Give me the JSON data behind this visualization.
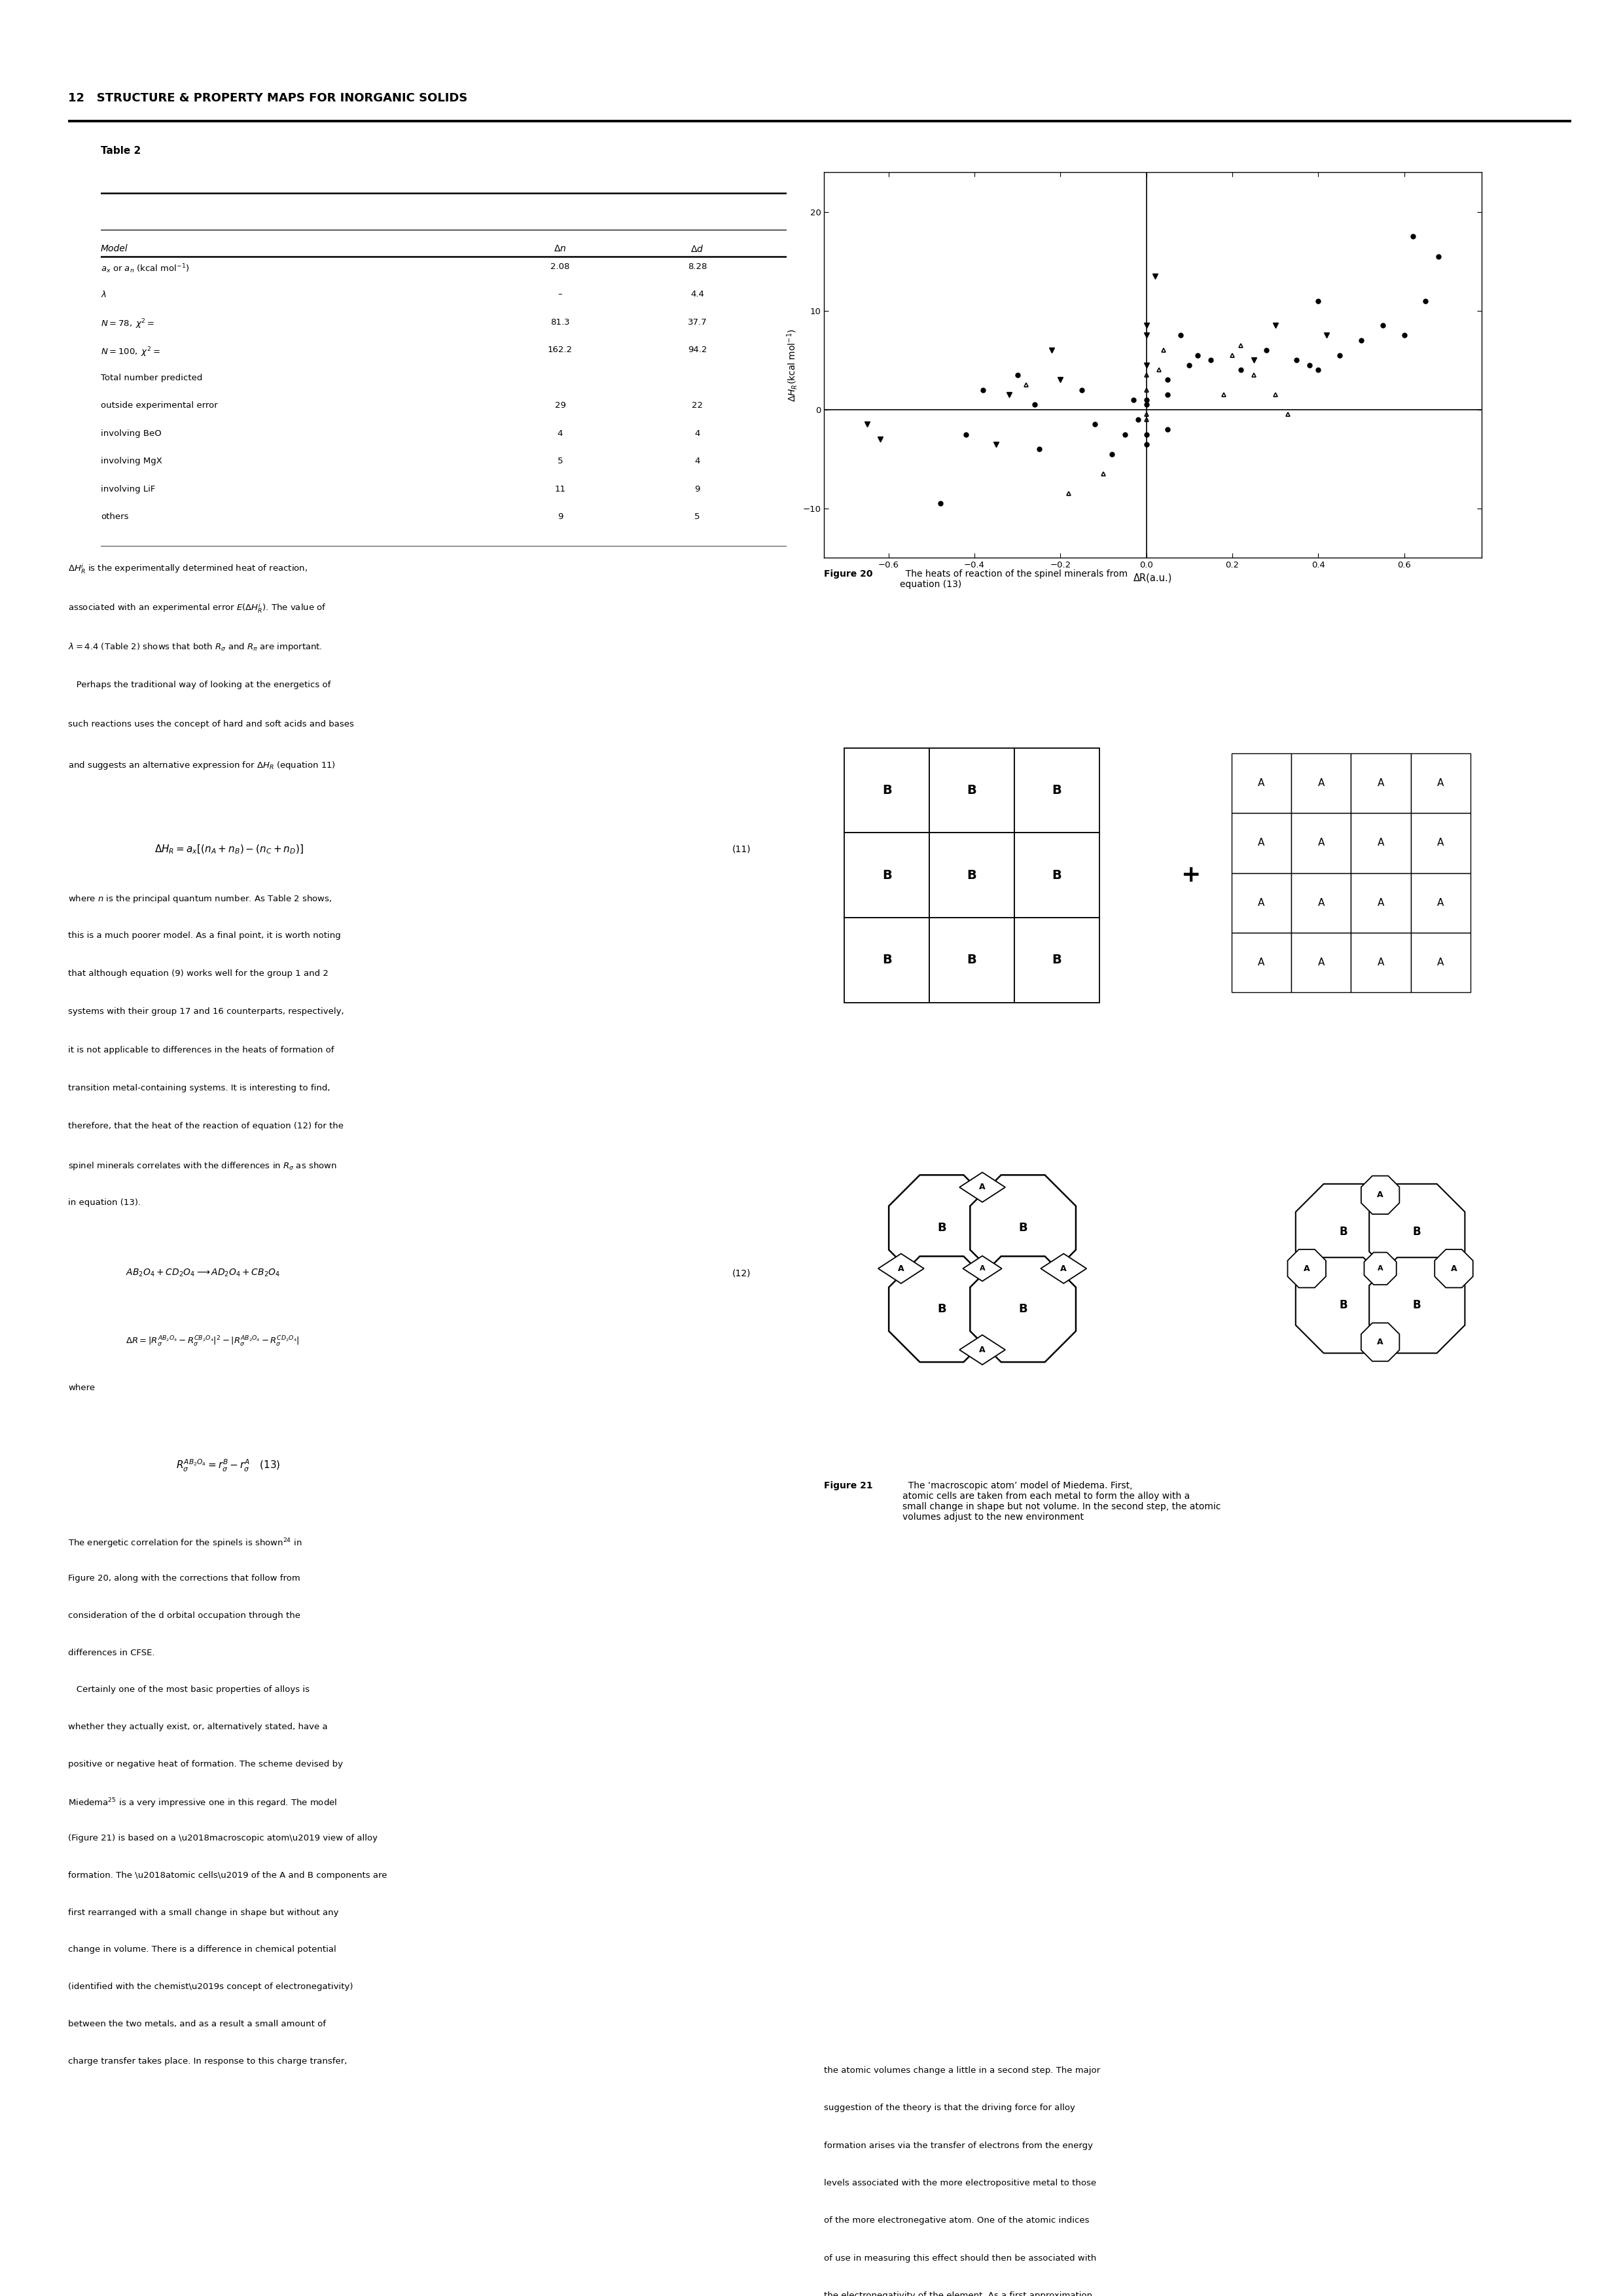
{
  "page_title": "12   STRUCTURE & PROPERTY MAPS FOR INORGANIC SOLIDS",
  "table_title": "Table 2",
  "scatter_xlabel": "ΔR(a.u.)",
  "scatter_xlim": [
    -0.75,
    0.78
  ],
  "scatter_ylim": [
    -15,
    24
  ],
  "scatter_xticks": [
    -0.6,
    -0.4,
    -0.2,
    0,
    0.2,
    0.4,
    0.6
  ],
  "scatter_yticks": [
    -10,
    0,
    10,
    20
  ],
  "fig20_caption_bold": "Figure 20",
  "fig20_caption_rest": "  The heats of reaction of the spinel minerals from\nequation (13)",
  "fig21_caption_bold": "Figure 21",
  "fig21_caption_rest": "  The ‘macroscopic atom’ model of Miedema. First,\natomic cells are taken from each metal to form the alloy with a\nsmall change in shape but not volume. In the second step, the atomic\nvolumes adjust to the new environment",
  "bg_color": "#ffffff",
  "scatter_points": [
    [
      -0.65,
      -1.5,
      "v"
    ],
    [
      -0.62,
      -3.0,
      "v"
    ],
    [
      -0.48,
      -9.5,
      "o"
    ],
    [
      -0.42,
      -2.5,
      "o"
    ],
    [
      -0.38,
      2.0,
      "o"
    ],
    [
      -0.35,
      -3.5,
      "v"
    ],
    [
      -0.32,
      1.5,
      "v"
    ],
    [
      -0.3,
      3.5,
      "o"
    ],
    [
      -0.28,
      2.5,
      "^"
    ],
    [
      -0.26,
      0.5,
      "o"
    ],
    [
      -0.25,
      -4.0,
      "o"
    ],
    [
      -0.22,
      6.0,
      "v"
    ],
    [
      -0.2,
      3.0,
      "v"
    ],
    [
      -0.18,
      -8.5,
      "^"
    ],
    [
      -0.15,
      2.0,
      "o"
    ],
    [
      -0.12,
      -1.5,
      "o"
    ],
    [
      -0.1,
      -6.5,
      "^"
    ],
    [
      -0.08,
      -4.5,
      "o"
    ],
    [
      -0.05,
      -2.5,
      "o"
    ],
    [
      -0.03,
      1.0,
      "o"
    ],
    [
      -0.02,
      -1.0,
      "o"
    ],
    [
      0.0,
      8.5,
      "v"
    ],
    [
      0.0,
      7.5,
      "v"
    ],
    [
      0.0,
      4.5,
      "v"
    ],
    [
      0.0,
      3.5,
      "^"
    ],
    [
      0.0,
      2.0,
      "^"
    ],
    [
      0.0,
      1.0,
      "o"
    ],
    [
      0.0,
      0.5,
      "o"
    ],
    [
      0.0,
      -0.5,
      "^"
    ],
    [
      0.0,
      -1.0,
      "^"
    ],
    [
      0.0,
      -2.5,
      "o"
    ],
    [
      0.0,
      -3.5,
      "o"
    ],
    [
      0.02,
      13.5,
      "v"
    ],
    [
      0.03,
      4.0,
      "^"
    ],
    [
      0.04,
      6.0,
      "^"
    ],
    [
      0.05,
      3.0,
      "o"
    ],
    [
      0.05,
      1.5,
      "o"
    ],
    [
      0.05,
      -2.0,
      "o"
    ],
    [
      0.08,
      7.5,
      "o"
    ],
    [
      0.1,
      4.5,
      "o"
    ],
    [
      0.12,
      5.5,
      "o"
    ],
    [
      0.15,
      5.0,
      "o"
    ],
    [
      0.18,
      1.5,
      "^"
    ],
    [
      0.2,
      5.5,
      "^"
    ],
    [
      0.22,
      6.5,
      "^"
    ],
    [
      0.22,
      4.0,
      "o"
    ],
    [
      0.25,
      5.0,
      "v"
    ],
    [
      0.25,
      3.5,
      "^"
    ],
    [
      0.28,
      6.0,
      "o"
    ],
    [
      0.3,
      8.5,
      "v"
    ],
    [
      0.3,
      1.5,
      "^"
    ],
    [
      0.33,
      -0.5,
      "^"
    ],
    [
      0.35,
      5.0,
      "o"
    ],
    [
      0.38,
      4.5,
      "o"
    ],
    [
      0.4,
      4.0,
      "o"
    ],
    [
      0.4,
      11.0,
      "o"
    ],
    [
      0.42,
      7.5,
      "v"
    ],
    [
      0.45,
      5.5,
      "o"
    ],
    [
      0.5,
      7.0,
      "o"
    ],
    [
      0.55,
      8.5,
      "o"
    ],
    [
      0.6,
      7.5,
      "o"
    ],
    [
      0.62,
      17.5,
      "o"
    ],
    [
      0.65,
      11.0,
      "o"
    ],
    [
      0.68,
      15.5,
      "o"
    ]
  ]
}
